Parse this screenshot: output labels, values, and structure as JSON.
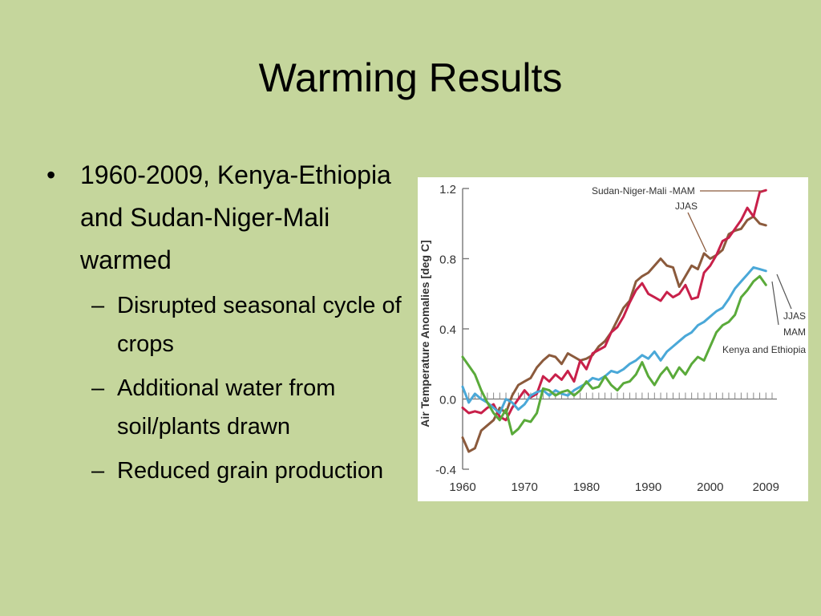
{
  "slide": {
    "title": "Warming Results",
    "bullet": "1960-2009, Kenya-Ethiopia and Sudan-Niger-Mali warmed",
    "sub_bullets": [
      "Disrupted seasonal cycle of crops",
      "Additional water from soil/plants drawn",
      "Reduced grain production"
    ]
  },
  "chart_data": {
    "type": "line",
    "ylabel": "Air Temperature Anomalies [deg C]",
    "xlim": [
      1960,
      2010
    ],
    "ylim": [
      -0.4,
      1.2
    ],
    "x_ticks": [
      "1960",
      "1970",
      "1980",
      "1990",
      "2000",
      "2009"
    ],
    "x_tick_values": [
      1960,
      1970,
      1980,
      1990,
      2000,
      2009
    ],
    "y_ticks": [
      "-0.4",
      "0.0",
      "0.4",
      "0.8",
      "1.2"
    ],
    "y_tick_values": [
      -0.4,
      0.0,
      0.4,
      0.8,
      1.2
    ],
    "x": [
      1960,
      1961,
      1962,
      1963,
      1964,
      1965,
      1966,
      1967,
      1968,
      1969,
      1970,
      1971,
      1972,
      1973,
      1974,
      1975,
      1976,
      1977,
      1978,
      1979,
      1980,
      1981,
      1982,
      1983,
      1984,
      1985,
      1986,
      1987,
      1988,
      1989,
      1990,
      1991,
      1992,
      1993,
      1994,
      1995,
      1996,
      1997,
      1998,
      1999,
      2000,
      2001,
      2002,
      2003,
      2004,
      2005,
      2006,
      2007,
      2008,
      2009
    ],
    "annotations": {
      "top_group": [
        "Sudan-Niger-Mali -MAM",
        "JJAS"
      ],
      "bottom_group": [
        "JJAS",
        "MAM",
        "Kenya and Ethiopia"
      ]
    },
    "series": [
      {
        "color": "#8b5a3c",
        "values": [
          -0.22,
          -0.3,
          -0.28,
          -0.18,
          -0.15,
          -0.12,
          -0.05,
          -0.08,
          0.02,
          0.08,
          0.1,
          0.12,
          0.18,
          0.22,
          0.25,
          0.24,
          0.2,
          0.26,
          0.24,
          0.22,
          0.23,
          0.25,
          0.3,
          0.33,
          0.38,
          0.45,
          0.52,
          0.56,
          0.67,
          0.7,
          0.72,
          0.76,
          0.8,
          0.76,
          0.75,
          0.64,
          0.7,
          0.76,
          0.74,
          0.83,
          0.8,
          0.82,
          0.85,
          0.94,
          0.96,
          0.97,
          1.02,
          1.04,
          1.0,
          0.99
        ]
      },
      {
        "color": "#c8204a",
        "values": [
          -0.05,
          -0.08,
          -0.07,
          -0.08,
          -0.05,
          -0.03,
          -0.1,
          -0.12,
          -0.05,
          0.0,
          0.05,
          0.01,
          0.03,
          0.13,
          0.1,
          0.14,
          0.11,
          0.16,
          0.1,
          0.22,
          0.17,
          0.26,
          0.28,
          0.3,
          0.38,
          0.41,
          0.47,
          0.55,
          0.62,
          0.66,
          0.6,
          0.58,
          0.56,
          0.61,
          0.58,
          0.6,
          0.65,
          0.57,
          0.58,
          0.72,
          0.76,
          0.82,
          0.9,
          0.92,
          0.97,
          1.02,
          1.09,
          1.04,
          1.18,
          1.19
        ]
      },
      {
        "color": "#4aa8d8",
        "values": [
          0.07,
          -0.02,
          0.03,
          0.0,
          -0.02,
          -0.05,
          -0.08,
          0.0,
          -0.02,
          -0.06,
          -0.03,
          0.02,
          0.04,
          0.05,
          0.02,
          0.05,
          0.03,
          0.02,
          0.05,
          0.07,
          0.09,
          0.12,
          0.11,
          0.13,
          0.16,
          0.15,
          0.17,
          0.2,
          0.22,
          0.25,
          0.23,
          0.27,
          0.22,
          0.27,
          0.3,
          0.33,
          0.36,
          0.38,
          0.42,
          0.44,
          0.47,
          0.5,
          0.52,
          0.57,
          0.63,
          0.67,
          0.71,
          0.75,
          0.74,
          0.73
        ]
      },
      {
        "color": "#5aaa3a",
        "values": [
          0.24,
          0.19,
          0.14,
          0.05,
          -0.02,
          -0.08,
          -0.12,
          -0.06,
          -0.2,
          -0.17,
          -0.12,
          -0.13,
          -0.08,
          0.06,
          0.05,
          0.02,
          0.04,
          0.05,
          0.02,
          0.05,
          0.1,
          0.06,
          0.07,
          0.13,
          0.08,
          0.05,
          0.09,
          0.1,
          0.14,
          0.21,
          0.13,
          0.08,
          0.14,
          0.18,
          0.12,
          0.18,
          0.14,
          0.2,
          0.24,
          0.22,
          0.3,
          0.38,
          0.42,
          0.44,
          0.48,
          0.58,
          0.62,
          0.67,
          0.7,
          0.65
        ]
      }
    ]
  }
}
